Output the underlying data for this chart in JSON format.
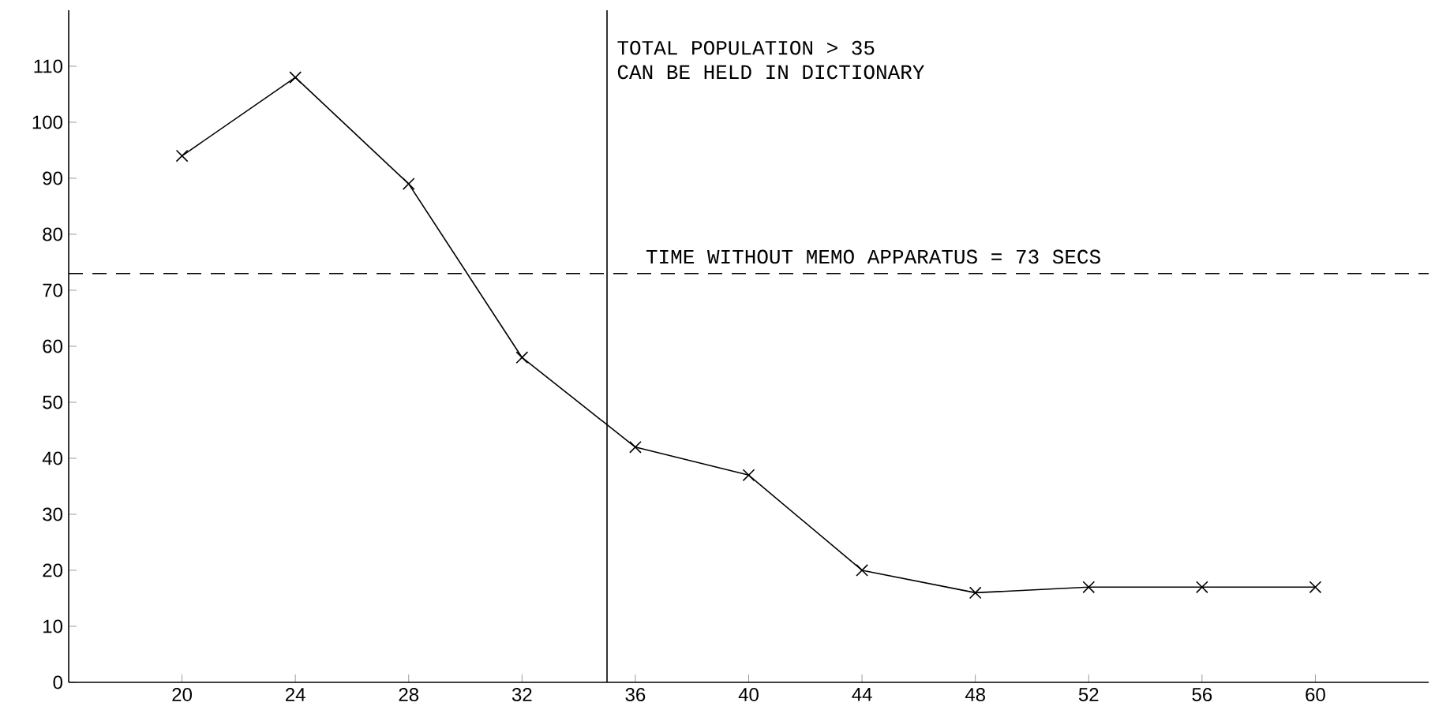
{
  "chart_data": {
    "type": "line",
    "x": [
      20,
      24,
      28,
      32,
      36,
      40,
      44,
      48,
      52,
      56,
      60
    ],
    "series": [
      {
        "color": "#000000",
        "values": [
          94,
          108,
          89,
          58,
          42,
          37,
          20,
          16,
          17,
          17,
          17
        ]
      }
    ],
    "xlim": [
      16,
      64
    ],
    "ylim": [
      0,
      120
    ],
    "xticks": [
      20,
      24,
      28,
      32,
      36,
      40,
      44,
      48,
      52,
      56,
      60
    ],
    "yticks": [
      0,
      10,
      20,
      30,
      40,
      50,
      60,
      70,
      80,
      90,
      100,
      110
    ],
    "marker": "cross",
    "line_style": "solid",
    "ref_lines": [
      {
        "axis": "x",
        "value": 35,
        "label": "TOTAL POPULATION > 35",
        "line_style": "solid",
        "color": "#000000"
      },
      {
        "axis": "y",
        "value": 73,
        "label": "TIME WITHOUT MEMO APPARATUS = 73 SECS",
        "line_style": "dashed",
        "color": "#000000"
      }
    ],
    "annotations": [
      "CAN BE HELD IN DICTIONARY"
    ]
  }
}
